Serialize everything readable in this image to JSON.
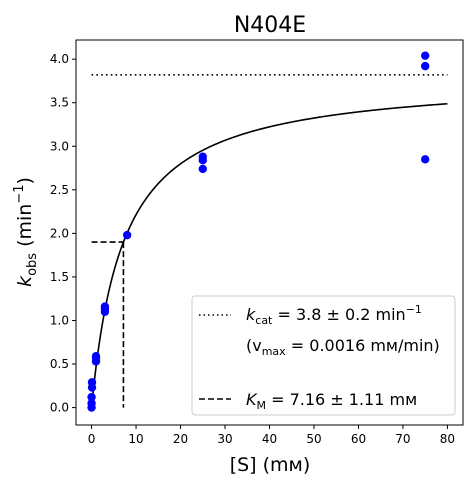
{
  "chart_data": {
    "type": "scatter",
    "title": "N404E",
    "xlabel": "[S] (mм)",
    "ylabel_main": "k",
    "ylabel_sub": "obs",
    "ylabel_units_open": " (min",
    "ylabel_units_sup": "−1",
    "ylabel_units_close": ")",
    "xlim": [
      -3.5,
      83.5
    ],
    "ylim": [
      -0.2,
      4.22
    ],
    "xticks": [
      0,
      10,
      20,
      30,
      40,
      50,
      60,
      70,
      80
    ],
    "yticks": [
      0.0,
      0.5,
      1.0,
      1.5,
      2.0,
      2.5,
      3.0,
      3.5,
      4.0
    ],
    "xtick_labels": [
      "0",
      "10",
      "20",
      "30",
      "40",
      "50",
      "60",
      "70",
      "80"
    ],
    "ytick_labels": [
      "0.0",
      "0.5",
      "1.0",
      "1.5",
      "2.0",
      "2.5",
      "3.0",
      "3.5",
      "4.0"
    ],
    "grid": false,
    "legend_position": "lower-right",
    "points_color": "#0000ff",
    "points": [
      {
        "x": 0.0,
        "y": 0.0
      },
      {
        "x": 0.0,
        "y": 0.05
      },
      {
        "x": 0.0,
        "y": 0.12
      },
      {
        "x": 0.1,
        "y": 0.23
      },
      {
        "x": 0.1,
        "y": 0.29
      },
      {
        "x": 1.0,
        "y": 0.53
      },
      {
        "x": 1.0,
        "y": 0.57
      },
      {
        "x": 1.0,
        "y": 0.59
      },
      {
        "x": 3.0,
        "y": 1.1
      },
      {
        "x": 3.0,
        "y": 1.13
      },
      {
        "x": 3.0,
        "y": 1.16
      },
      {
        "x": 8.0,
        "y": 1.98
      },
      {
        "x": 25.0,
        "y": 2.74
      },
      {
        "x": 25.0,
        "y": 2.84
      },
      {
        "x": 25.0,
        "y": 2.88
      },
      {
        "x": 75.0,
        "y": 2.85
      },
      {
        "x": 75.0,
        "y": 3.92
      },
      {
        "x": 75.0,
        "y": 4.04
      }
    ],
    "fit": {
      "kcat": 3.8,
      "km": 7.16,
      "x_range": [
        0,
        80
      ]
    },
    "kcat_line": {
      "y": 3.82,
      "x_range": [
        0,
        80
      ],
      "style": "dotted"
    },
    "km_marker": {
      "x": 7.16,
      "y": 1.9,
      "style": "dashed"
    },
    "legend": {
      "kcat_prefix": "k",
      "kcat_sub": "cat",
      "kcat_text": " = 3.8 ± 0.2 min",
      "kcat_sup": "−1",
      "vmax_open": "(v",
      "vmax_sub": "max",
      "vmax_text": " = 0.0016 mм/min)",
      "km_prefix": "K",
      "km_sub": "M",
      "km_text": " = 7.16 ± 1.11 mм"
    }
  }
}
